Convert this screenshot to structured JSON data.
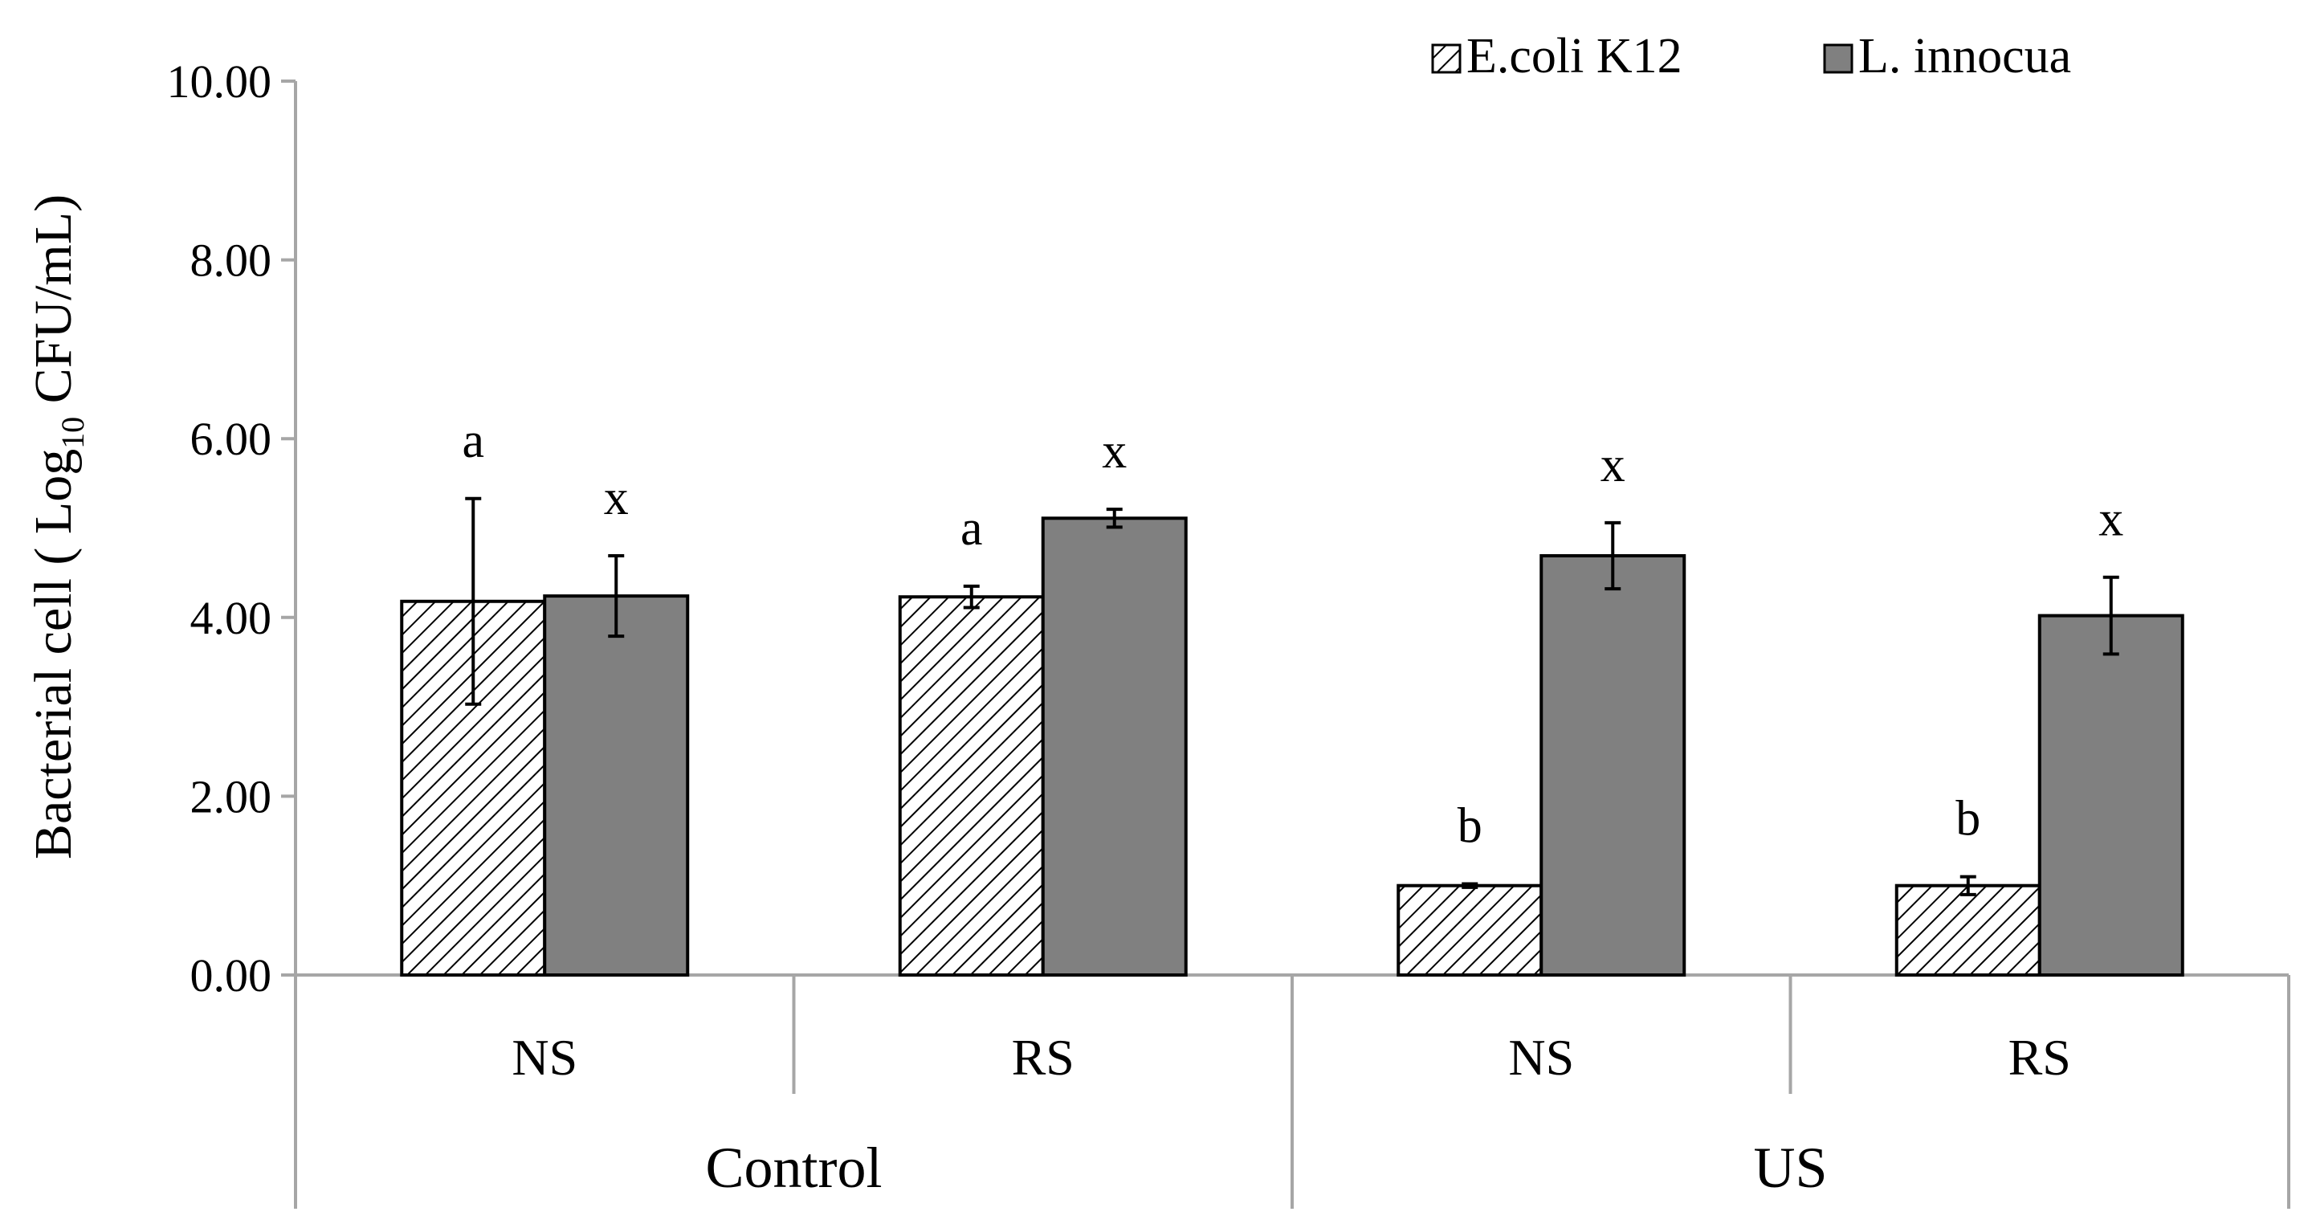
{
  "chart_data": {
    "type": "bar",
    "title": "",
    "xlabel": "",
    "ylabel": {
      "prefix": "Bacterial cell ( Log",
      "subscript": "10",
      "suffix": " CFU/mL)"
    },
    "ylim": [
      0,
      10
    ],
    "yticks": [
      "0.00",
      "2.00",
      "4.00",
      "6.00",
      "8.00",
      "10.00"
    ],
    "ytick_values": [
      0,
      2,
      4,
      6,
      8,
      10
    ],
    "grid": false,
    "legend_position": "top-right",
    "categories": [
      "NS",
      "RS",
      "NS",
      "RS"
    ],
    "groups": [
      {
        "label": "Control",
        "span": [
          0,
          1
        ]
      },
      {
        "label": "US",
        "span": [
          2,
          3
        ]
      }
    ],
    "series": [
      {
        "name": "E.coli K12",
        "pattern": "hatched",
        "values": [
          4.18,
          4.23,
          1.0,
          1.0
        ],
        "errors": [
          1.15,
          0.12,
          0.02,
          0.1
        ],
        "significance": [
          "a",
          "a",
          "b",
          "b"
        ]
      },
      {
        "name": "L. innocua",
        "pattern": "solid",
        "values": [
          4.24,
          5.11,
          4.69,
          4.02
        ],
        "errors": [
          0.45,
          0.1,
          0.37,
          0.43
        ],
        "significance": [
          "x",
          "x",
          "x",
          "x"
        ]
      }
    ],
    "colors": {
      "solid_fill": "#808080",
      "hatch_fill": "#ffffff",
      "hatch_line": "#000000",
      "bar_stroke": "#000000",
      "axis": "#a6a6a6",
      "text": "#000000"
    }
  }
}
